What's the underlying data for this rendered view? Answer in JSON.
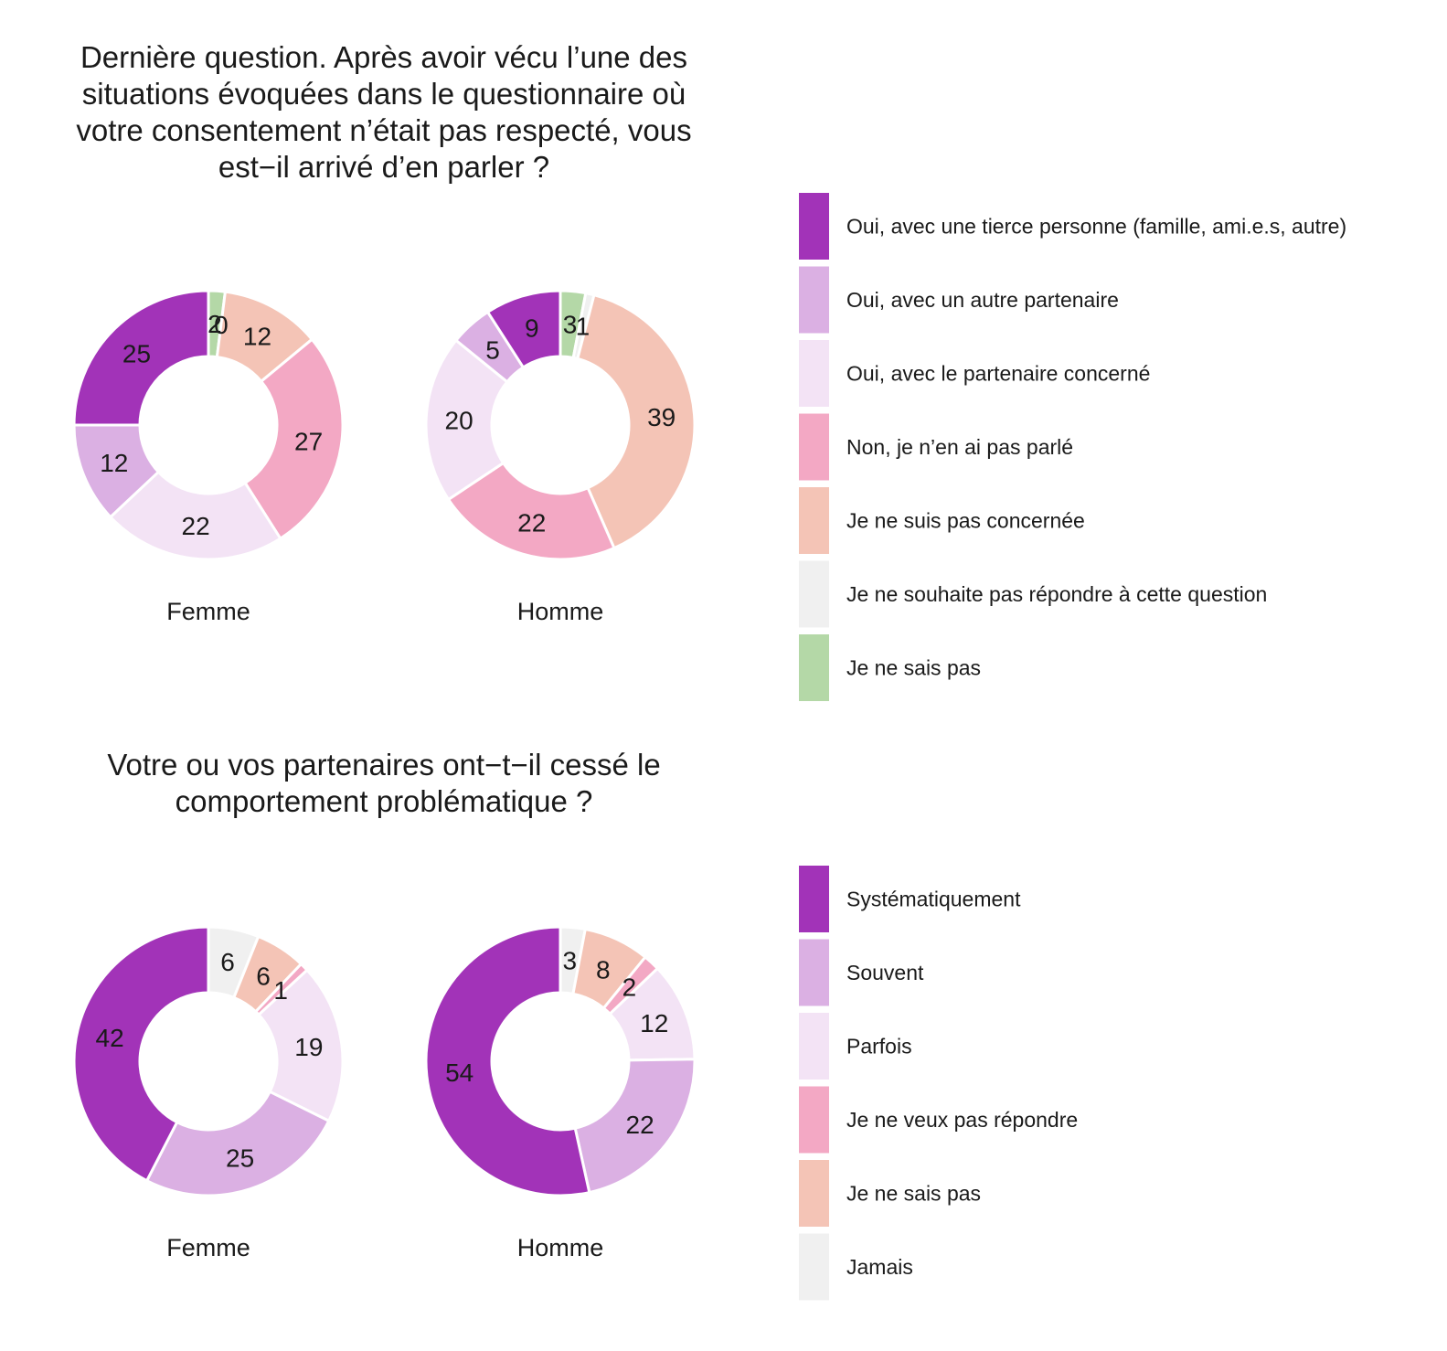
{
  "chart_data": [
    {
      "type": "pie",
      "title": "Dernière question. Après avoir vécu l’une des situations évoquées dans le questionnaire où votre consentement n’était pas respecté, vous est−il arrivé d’en parler ?",
      "title_lines": [
        "Dernière question. Après avoir vécu l’une des",
        "situations évoquées dans le questionnaire où",
        "votre consentement n’était pas respecté, vous",
        "est−il arrivé d’en parler ?"
      ],
      "categories": [
        "Oui, avec une tierce personne (famille, ami.e.s, autre)",
        "Oui, avec un autre partenaire",
        "Oui, avec le partenaire concerné",
        "Non, je n’en ai pas parlé",
        "Je ne suis pas concernée",
        "Je ne souhaite pas répondre à cette question",
        "Je ne sais pas"
      ],
      "colors": [
        "#a233b8",
        "#dbb0e3",
        "#f3e3f5",
        "#f3a8c4",
        "#f4c4b6",
        "#f0f0f0",
        "#b4d8a7"
      ],
      "legend_position": "right",
      "series": [
        {
          "name": "Femme",
          "values": [
            25,
            12,
            22,
            27,
            12,
            0,
            2
          ]
        },
        {
          "name": "Homme",
          "values": [
            9,
            5,
            20,
            22,
            39,
            1,
            3
          ]
        }
      ]
    },
    {
      "type": "pie",
      "title": "Votre ou vos partenaires ont−t−il cessé le comportement problématique ?",
      "title_lines": [
        "Votre ou vos partenaires ont−t−il cessé le",
        "comportement problématique ?"
      ],
      "categories": [
        "Systématiquement",
        "Souvent",
        "Parfois",
        "Je ne veux pas répondre",
        "Je ne sais pas",
        "Jamais"
      ],
      "colors": [
        "#a233b8",
        "#dbb0e3",
        "#f3e3f5",
        "#f3a8c4",
        "#f4c4b6",
        "#f0f0f0"
      ],
      "legend_position": "right",
      "series": [
        {
          "name": "Femme",
          "values": [
            42,
            25,
            19,
            1,
            6,
            6
          ]
        },
        {
          "name": "Homme",
          "values": [
            54,
            22,
            12,
            2,
            8,
            3
          ]
        }
      ]
    }
  ]
}
